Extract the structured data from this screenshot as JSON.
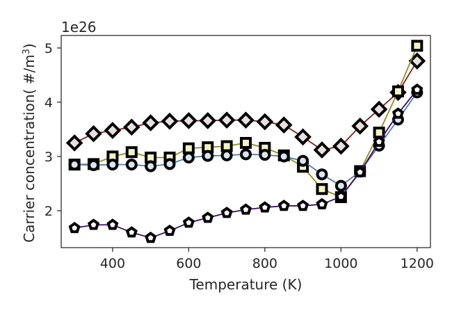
{
  "chart_data": {
    "type": "line",
    "title": "",
    "xlabel": "Temperature (K)",
    "ylabel_prefix": "Carrier concentration( #/m",
    "ylabel_sup": "3",
    "ylabel_suffix": ")",
    "offset_label": "1e26",
    "xlim": [
      265,
      1235
    ],
    "ylim": [
      1.32,
      5.23
    ],
    "x_ticks": [
      400,
      600,
      800,
      1000,
      1200
    ],
    "x_tick_labels": [
      "400",
      "600",
      "800",
      "1000",
      "1200"
    ],
    "y_ticks": [
      2,
      3,
      4,
      5
    ],
    "y_tick_labels": [
      "2",
      "3",
      "4",
      "5"
    ],
    "grid": false,
    "x": [
      300,
      350,
      400,
      450,
      500,
      550,
      600,
      650,
      700,
      750,
      800,
      850,
      900,
      950,
      1000,
      1050,
      1100,
      1150,
      1200
    ],
    "series": [
      {
        "name": "diamond series",
        "marker": "diamond",
        "line_color": "#8b1a1a",
        "marker_fill": "#e8e0e0",
        "values": [
          3.25,
          3.42,
          3.48,
          3.54,
          3.62,
          3.65,
          3.66,
          3.66,
          3.67,
          3.67,
          3.64,
          3.58,
          3.36,
          3.12,
          3.19,
          3.56,
          3.87,
          4.18,
          4.76
        ]
      },
      {
        "name": "square series",
        "marker": "square",
        "line_color": "#8e8e1c",
        "marker_fill": "#f3f3c3",
        "values": [
          2.85,
          2.86,
          3.0,
          3.08,
          2.98,
          2.98,
          3.15,
          3.17,
          3.19,
          3.25,
          3.16,
          3.02,
          2.81,
          2.4,
          2.25,
          2.73,
          3.44,
          4.2,
          5.04
        ]
      },
      {
        "name": "circle series",
        "marker": "circle",
        "line_color": "#4a7ea8",
        "marker_fill": "#d8e6f2",
        "values": [
          2.85,
          2.84,
          2.85,
          2.85,
          2.82,
          2.86,
          2.98,
          3.01,
          3.02,
          3.04,
          3.03,
          3.0,
          2.92,
          2.67,
          2.46,
          2.72,
          3.2,
          3.68,
          4.18
        ]
      },
      {
        "name": "pentagon series",
        "marker": "pentagon",
        "line_color": "#3d0a6e",
        "marker_fill": "#ffffff",
        "values": [
          1.68,
          1.74,
          1.74,
          1.6,
          1.5,
          1.63,
          1.78,
          1.87,
          1.96,
          2.02,
          2.06,
          2.09,
          2.09,
          2.12,
          2.26,
          2.71,
          3.27,
          3.79,
          4.23
        ]
      }
    ]
  }
}
